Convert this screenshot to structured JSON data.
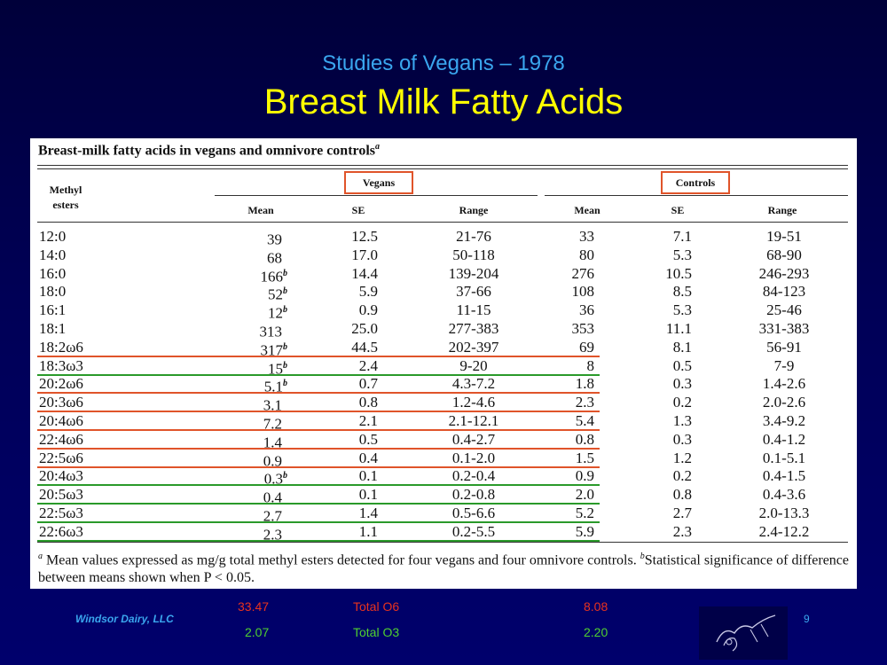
{
  "slide": {
    "subtitle": "Studies of Vegans – 1978",
    "title": "Breast Milk Fatty Acids",
    "company": "Windsor Dairy, LLC",
    "page_number": "9"
  },
  "table": {
    "caption": "Breast-milk fatty acids in vegans and omnivore controls",
    "caption_mark": "a",
    "row_header": [
      "Methyl",
      "esters"
    ],
    "groups": [
      "Vegans",
      "Controls"
    ],
    "columns": [
      "Mean",
      "SE",
      "Range",
      "Mean",
      "SE",
      "Range"
    ],
    "rows": [
      {
        "ester": "12:0",
        "v_mean": "39",
        "v_mark": "",
        "v_se": "12.5",
        "v_range": "21-76",
        "c_mean": "33",
        "c_se": "7.1",
        "c_range": "19-51",
        "underline": ""
      },
      {
        "ester": "14:0",
        "v_mean": "68",
        "v_mark": "",
        "v_se": "17.0",
        "v_range": "50-118",
        "c_mean": "80",
        "c_se": "5.3",
        "c_range": "68-90",
        "underline": ""
      },
      {
        "ester": "16:0",
        "v_mean": "166",
        "v_mark": "b",
        "v_se": "14.4",
        "v_range": "139-204",
        "c_mean": "276",
        "c_se": "10.5",
        "c_range": "246-293",
        "underline": ""
      },
      {
        "ester": "18:0",
        "v_mean": "52",
        "v_mark": "b",
        "v_se": "5.9",
        "v_range": "37-66",
        "c_mean": "108",
        "c_se": "8.5",
        "c_range": "84-123",
        "underline": ""
      },
      {
        "ester": "16:1",
        "v_mean": "12",
        "v_mark": "b",
        "v_se": "0.9",
        "v_range": "11-15",
        "c_mean": "36",
        "c_se": "5.3",
        "c_range": "25-46",
        "underline": ""
      },
      {
        "ester": "18:1",
        "v_mean": "313",
        "v_mark": "",
        "v_se": "25.0",
        "v_range": "277-383",
        "c_mean": "353",
        "c_se": "11.1",
        "c_range": "331-383",
        "underline": ""
      },
      {
        "ester": "18:2ω6",
        "v_mean": "317",
        "v_mark": "b",
        "v_se": "44.5",
        "v_range": "202-397",
        "c_mean": "69",
        "c_se": "8.1",
        "c_range": "56-91",
        "underline": "red"
      },
      {
        "ester": "18:3ω3",
        "v_mean": "15",
        "v_mark": "b",
        "v_se": "2.4",
        "v_range": "9-20",
        "c_mean": "8",
        "c_se": "0.5",
        "c_range": "7-9",
        "underline": "green"
      },
      {
        "ester": "20:2ω6",
        "v_mean": "5.1",
        "v_mark": "b",
        "v_se": "0.7",
        "v_range": "4.3-7.2",
        "c_mean": "1.8",
        "c_se": "0.3",
        "c_range": "1.4-2.6",
        "underline": "red"
      },
      {
        "ester": "20:3ω6",
        "v_mean": "3.1",
        "v_mark": "",
        "v_se": "0.8",
        "v_range": "1.2-4.6",
        "c_mean": "2.3",
        "c_se": "0.2",
        "c_range": "2.0-2.6",
        "underline": "red"
      },
      {
        "ester": "20:4ω6",
        "v_mean": "7.2",
        "v_mark": "",
        "v_se": "2.1",
        "v_range": "2.1-12.1",
        "c_mean": "5.4",
        "c_se": "1.3",
        "c_range": "3.4-9.2",
        "underline": "red"
      },
      {
        "ester": "22:4ω6",
        "v_mean": "1.4",
        "v_mark": "",
        "v_se": "0.5",
        "v_range": "0.4-2.7",
        "c_mean": "0.8",
        "c_se": "0.3",
        "c_range": "0.4-1.2",
        "underline": "red"
      },
      {
        "ester": "22:5ω6",
        "v_mean": "0.9",
        "v_mark": "",
        "v_se": "0.4",
        "v_range": "0.1-2.0",
        "c_mean": "1.5",
        "c_se": "1.2",
        "c_range": "0.1-5.1",
        "underline": "red"
      },
      {
        "ester": "20:4ω3",
        "v_mean": "0.3",
        "v_mark": "b",
        "v_se": "0.1",
        "v_range": "0.2-0.4",
        "c_mean": "0.9",
        "c_se": "0.2",
        "c_range": "0.4-1.5",
        "underline": "green"
      },
      {
        "ester": "20:5ω3",
        "v_mean": "0.4",
        "v_mark": "",
        "v_se": "0.1",
        "v_range": "0.2-0.8",
        "c_mean": "2.0",
        "c_se": "0.8",
        "c_range": "0.4-3.6",
        "underline": "green"
      },
      {
        "ester": "22:5ω3",
        "v_mean": "2.7",
        "v_mark": "",
        "v_se": "1.4",
        "v_range": "0.5-6.6",
        "c_mean": "5.2",
        "c_se": "2.7",
        "c_range": "2.0-13.3",
        "underline": "green"
      },
      {
        "ester": "22:6ω3",
        "v_mean": "2.3",
        "v_mark": "",
        "v_se": "1.1",
        "v_range": "0.2-5.5",
        "c_mean": "5.9",
        "c_se": "2.3",
        "c_range": "2.4-12.2",
        "underline": "green"
      }
    ],
    "footnote_a_mark": "a",
    "footnote_a": "Mean values expressed as mg/g total methyl esters detected for four vegans and four omnivore controls.",
    "footnote_b_mark": "b",
    "footnote_b": "Statistical significance of difference between means shown when P < 0.05."
  },
  "summary": {
    "o6_vegan": "33.47",
    "o6_label": "Total O6",
    "o6_control": "8.08",
    "o3_vegan": "2.07",
    "o3_label": "Total O3",
    "o3_control": "2.20"
  },
  "colors": {
    "background": "#00005a",
    "subtitle": "#3aa6ee",
    "title": "#ffff00",
    "omega6_line": "#e0542a",
    "omega3_line": "#2a9a2a",
    "summary_o6": "#e8321e",
    "summary_o3": "#50d030"
  },
  "icons": {
    "logo": "cow-sketch-logo"
  }
}
